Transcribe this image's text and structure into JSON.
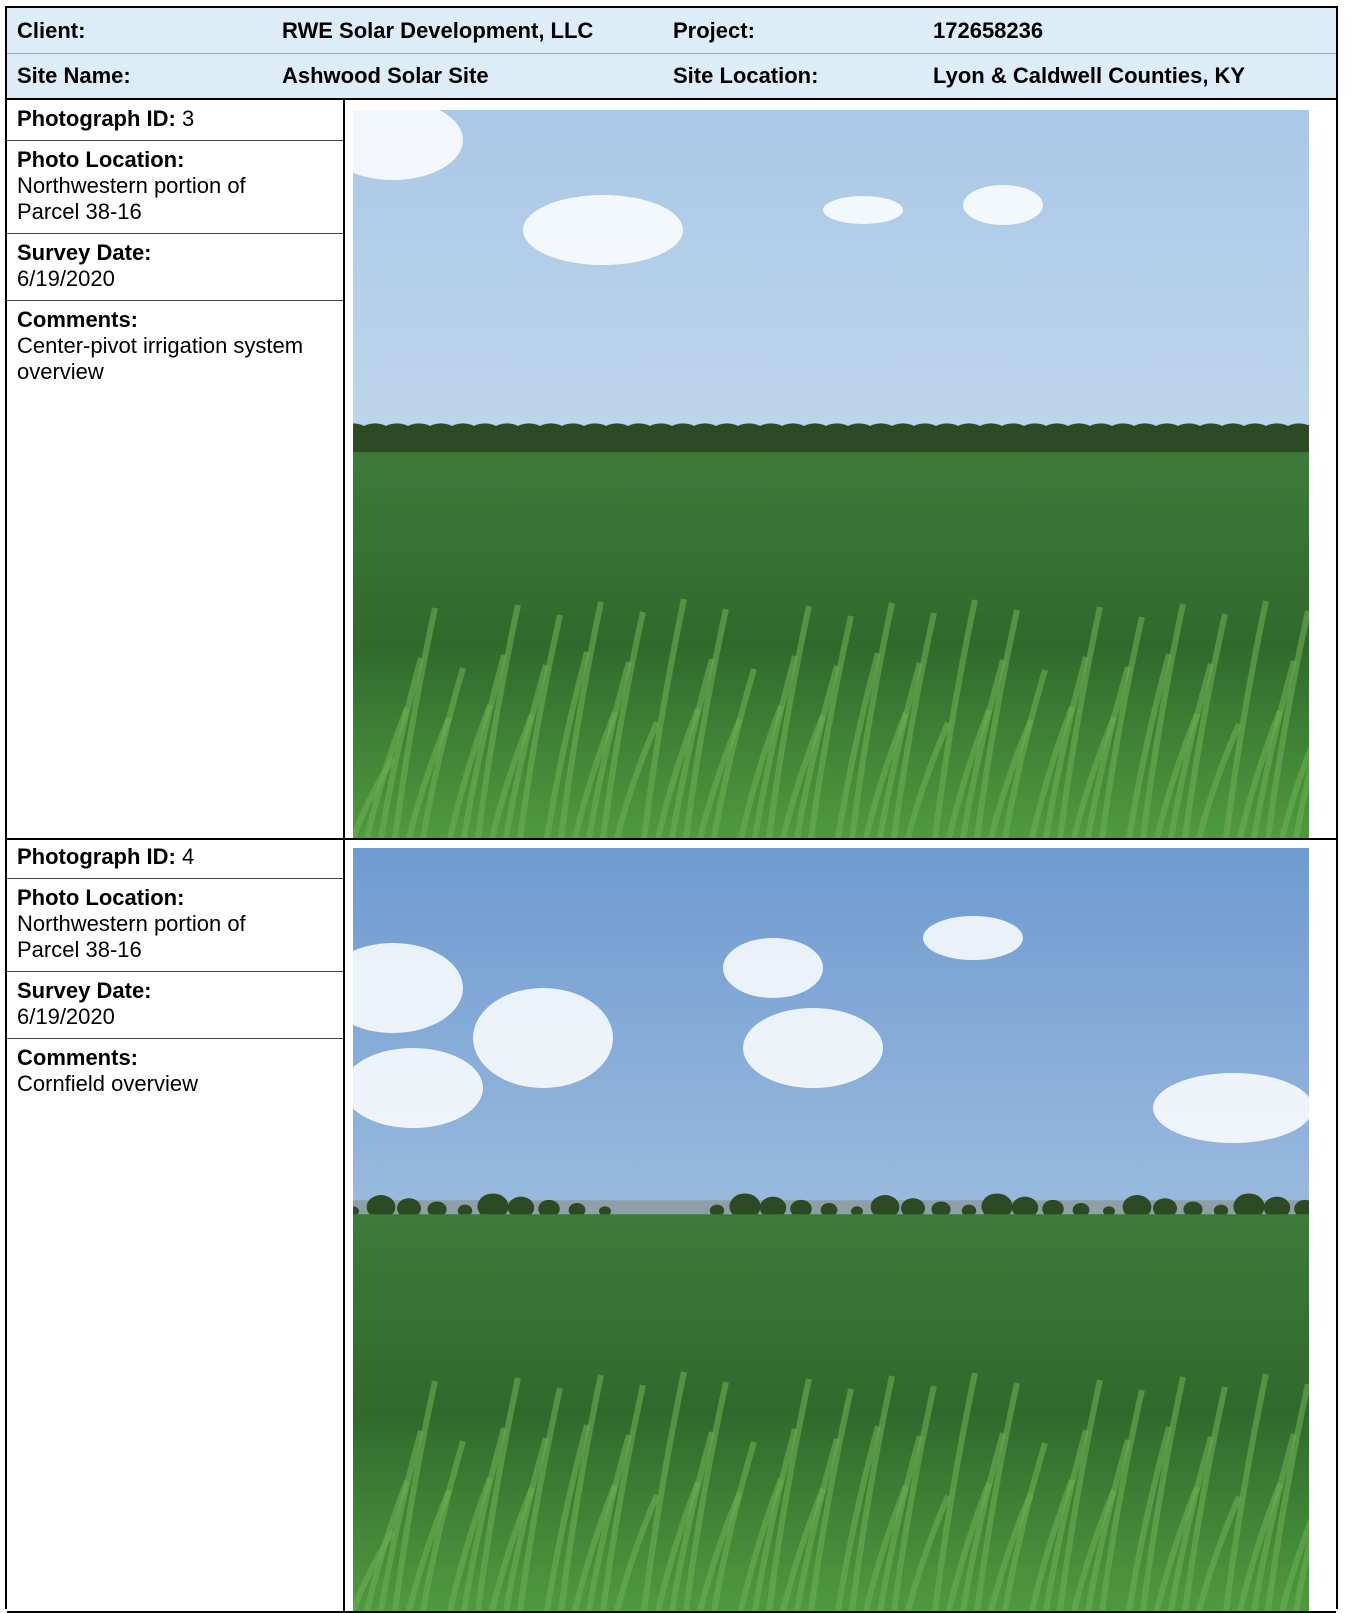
{
  "header": {
    "rows": [
      [
        {
          "label": "Client:",
          "value": "RWE Solar Development, LLC"
        },
        {
          "label": "Project:",
          "value": "172658236"
        }
      ],
      [
        {
          "label": "Site Name:",
          "value": "Ashwood Solar Site"
        },
        {
          "label": "Site Location:",
          "value": "Lyon & Caldwell Counties, KY"
        }
      ]
    ]
  },
  "photos": [
    {
      "id_label": "Photograph ID:",
      "id": "3",
      "location_label": "Photo Location:",
      "location": "Northwestern portion of Parcel 38-16",
      "date_label": "Survey Date:",
      "date": "6/19/2020",
      "comments_label": "Comments:",
      "comments": "Center-pivot irrigation system overview"
    },
    {
      "id_label": "Photograph ID:",
      "id": "4",
      "location_label": "Photo Location:",
      "location": "Northwestern portion of Parcel 38-16",
      "date_label": "Survey Date:",
      "date": "6/19/2020",
      "comments_label": "Comments:",
      "comments": "Cornfield overview"
    }
  ]
}
